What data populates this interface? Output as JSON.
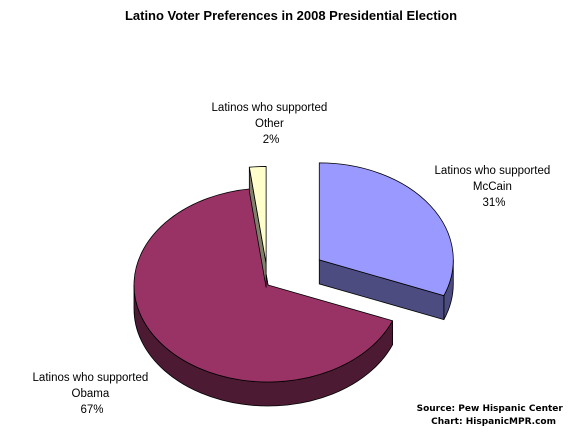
{
  "chart_data": {
    "type": "pie",
    "title": "Latino Voter Preferences in 2008 Presidential Election",
    "slices": [
      {
        "label_lines": [
          "Latinos who supported",
          "McCain",
          "31%"
        ],
        "value": 31,
        "color": "#9999ff",
        "side_color": "#4d4c80"
      },
      {
        "label_lines": [
          "Latinos who supported",
          "Obama",
          "67%"
        ],
        "value": 67,
        "color": "#993366",
        "side_color": "#4d1a33"
      },
      {
        "label_lines": [
          "Latinos who supported",
          "Other",
          "2%"
        ],
        "value": 2,
        "color": "#ffffcc",
        "side_color": "#80806a"
      }
    ],
    "source_lines": [
      "Source: Pew Hispanic Center",
      "Chart: HispanicMPR.com"
    ]
  }
}
